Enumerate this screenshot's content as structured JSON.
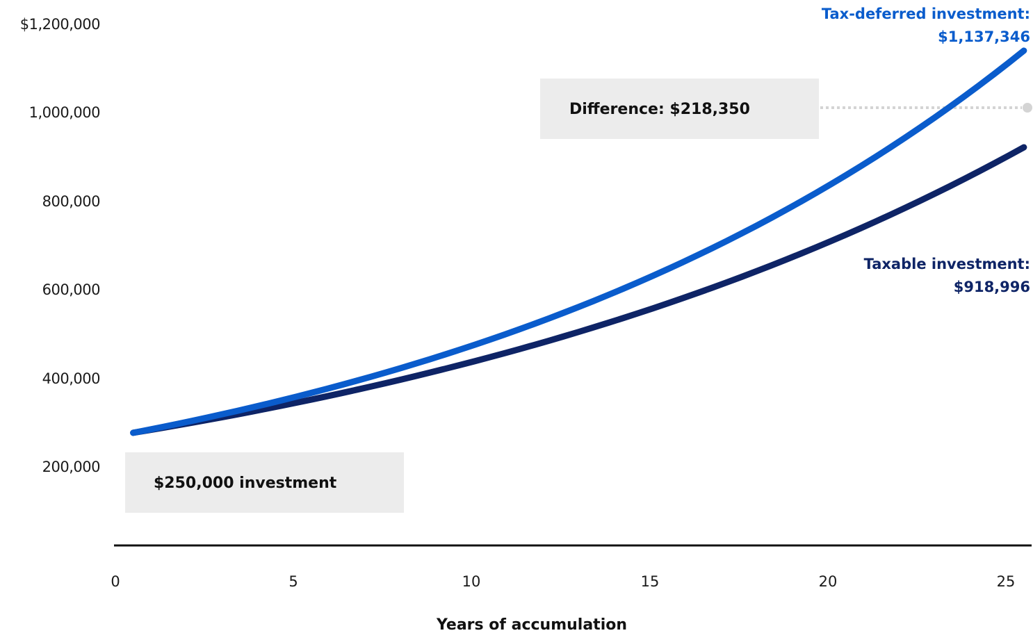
{
  "chart_data": {
    "type": "line",
    "xlabel": "Years of accumulation",
    "x_ticks": [
      "0",
      "5",
      "10",
      "15",
      "20",
      "25"
    ],
    "y_ticks": [
      "$1,200,000",
      "1,000,000",
      "800,000",
      "600,000",
      "400,000",
      "200,000"
    ],
    "xlim": [
      0,
      25.5
    ],
    "ylim": [
      200000,
      1200000
    ],
    "principal": 250000,
    "series": [
      {
        "key": "tax_deferred",
        "color": "#0a5ccc",
        "start_year": 0.5,
        "end_year": 25.5,
        "start_value": 274000,
        "end_value": 1137346,
        "label_line1": "Tax-deferred investment:",
        "label_line2": "$1,137,346"
      },
      {
        "key": "taxable",
        "color": "#0e2466",
        "start_year": 0.5,
        "end_year": 25.5,
        "start_value": 274000,
        "end_value": 918996,
        "label_line1": "Taxable investment:",
        "label_line2": "$918,996"
      }
    ],
    "annotations": {
      "difference": {
        "label": "Difference: $218,350",
        "marker_year": 25.5,
        "marker_value": 1000000,
        "marker_color": "#d4d4d4"
      },
      "investment": {
        "label": "$250,000 investment"
      }
    },
    "box_color": "#ececec",
    "axis_color": "#111111"
  }
}
